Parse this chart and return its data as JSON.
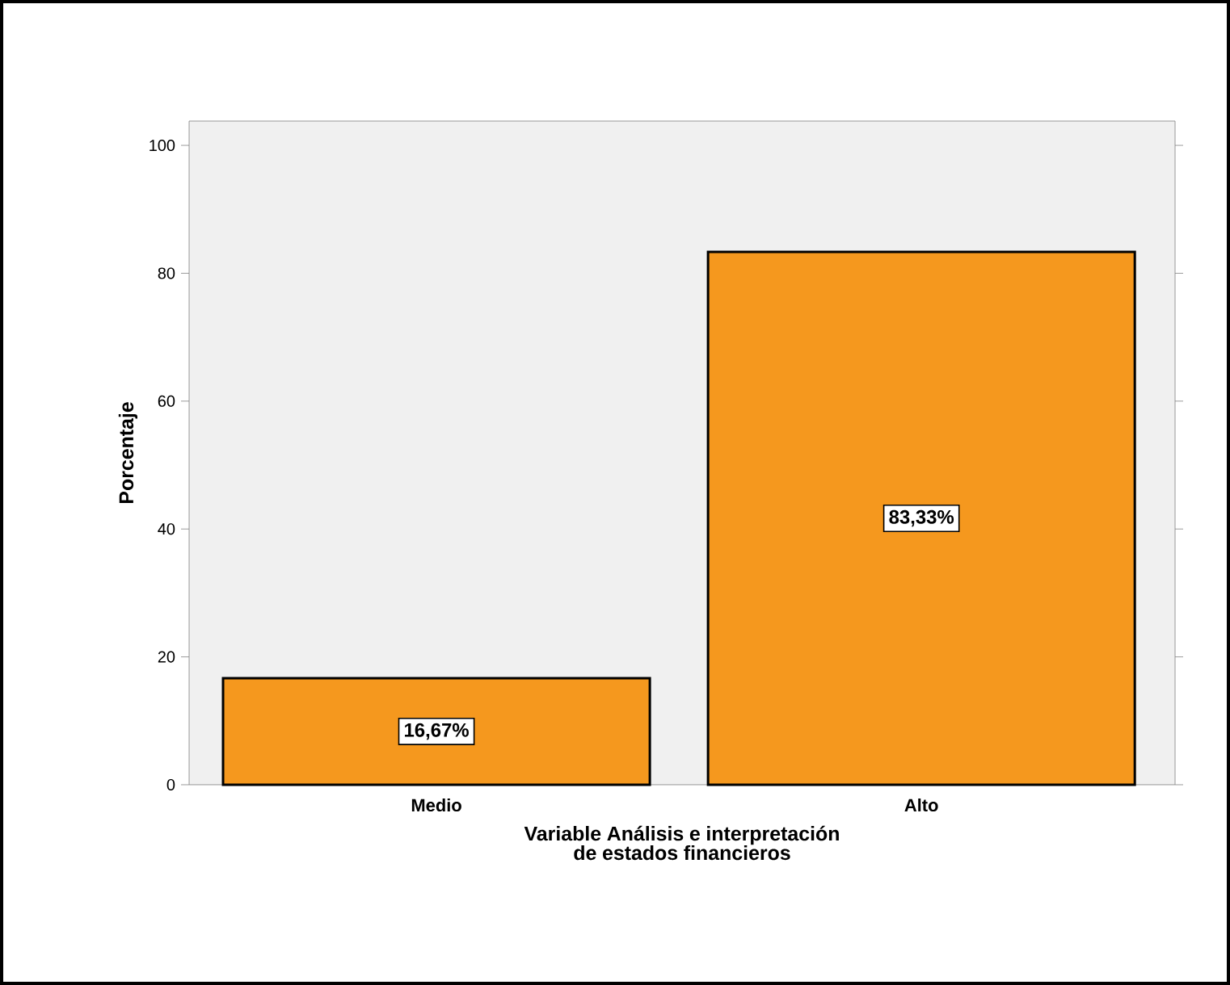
{
  "chart_data": {
    "type": "bar",
    "xlabel": "Variable Análisis e interpretación de estados financieros",
    "ylabel": "Porcentaje",
    "categories": [
      "Medio",
      "Alto"
    ],
    "values": [
      16.67,
      83.33
    ],
    "value_labels": [
      "16,67%",
      "83,33%"
    ],
    "color": "#f5981e",
    "ylim": [
      0,
      103.8
    ],
    "yticks": [
      0,
      20,
      40,
      60,
      80,
      100
    ]
  }
}
